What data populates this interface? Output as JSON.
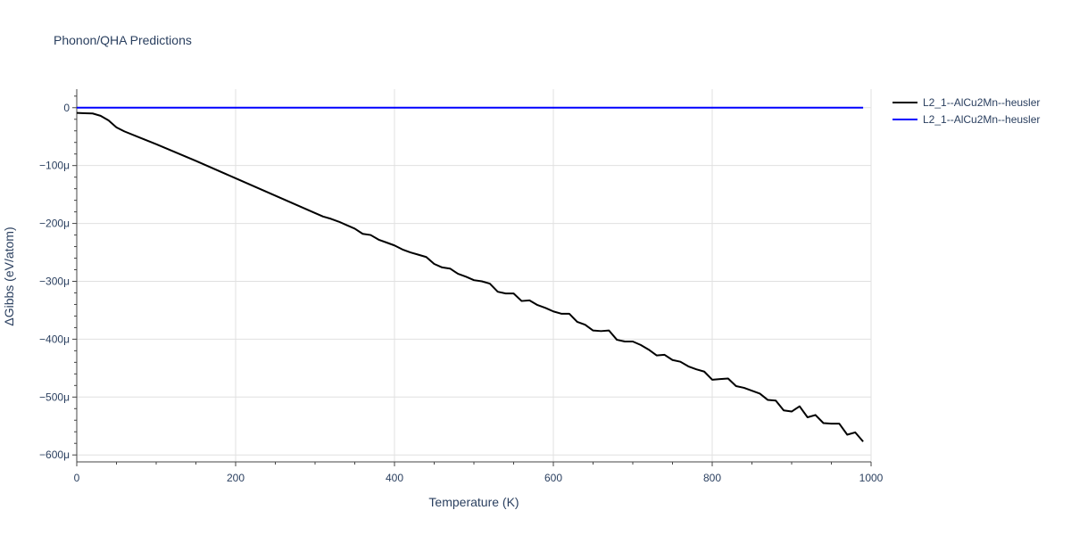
{
  "chart_data": {
    "type": "line",
    "title": "Phonon/QHA Predictions",
    "xlabel": "Temperature (K)",
    "ylabel": "ΔGibbs (eV/atom)",
    "xlim": [
      0,
      1000
    ],
    "ylim": [
      -0.000612,
      3.2e-05
    ],
    "x_ticks": [
      {
        "value": 0,
        "label": "0"
      },
      {
        "value": 200,
        "label": "200"
      },
      {
        "value": 400,
        "label": "400"
      },
      {
        "value": 600,
        "label": "600"
      },
      {
        "value": 800,
        "label": "800"
      },
      {
        "value": 1000,
        "label": "1000"
      }
    ],
    "y_ticks": [
      {
        "value": 0,
        "label": "0"
      },
      {
        "value": -0.0001,
        "label": "−100μ"
      },
      {
        "value": -0.0002,
        "label": "−200μ"
      },
      {
        "value": -0.0003,
        "label": "−300μ"
      },
      {
        "value": -0.0004,
        "label": "−400μ"
      },
      {
        "value": -0.0005,
        "label": "−500μ"
      },
      {
        "value": -0.0006,
        "label": "−600μ"
      }
    ],
    "grid": true,
    "legend_position": "top-right",
    "series": [
      {
        "name": "L2_1--AlCu2Mn--heusler",
        "color": "#000000",
        "x": [
          0,
          10,
          20,
          30,
          40,
          50,
          60,
          80,
          100,
          150,
          200,
          250,
          300,
          310,
          320,
          330,
          340,
          350,
          360,
          370,
          380,
          390,
          400,
          410,
          420,
          430,
          440,
          450,
          460,
          470,
          480,
          490,
          500,
          510,
          520,
          530,
          540,
          550,
          560,
          570,
          580,
          590,
          600,
          610,
          620,
          630,
          640,
          650,
          660,
          670,
          680,
          690,
          700,
          710,
          720,
          730,
          740,
          750,
          760,
          770,
          780,
          790,
          800,
          810,
          820,
          830,
          840,
          850,
          860,
          870,
          880,
          890,
          900,
          910,
          920,
          930,
          940,
          950,
          960,
          970,
          980,
          990
        ],
        "y": [
          -9e-06,
          -9.5e-06,
          -1e-05,
          -1.4e-05,
          -2.2e-05,
          -3.4e-05,
          -4.1e-05,
          -5.2e-05,
          -6.3e-05,
          -9.2e-05,
          -0.000122,
          -0.000152,
          -0.000182,
          -0.000188,
          -0.000192,
          -0.000197,
          -0.000203,
          -0.000209,
          -0.000218,
          -0.00022,
          -0.000228,
          -0.000233,
          -0.000238,
          -0.000245,
          -0.00025,
          -0.000254,
          -0.000258,
          -0.00027,
          -0.000276,
          -0.000278,
          -0.000287,
          -0.000292,
          -0.000298,
          -0.0003,
          -0.000304,
          -0.000318,
          -0.000321,
          -0.000321,
          -0.000334,
          -0.000333,
          -0.000341,
          -0.000346,
          -0.000352,
          -0.000356,
          -0.000356,
          -0.00037,
          -0.000375,
          -0.000385,
          -0.000386,
          -0.000385,
          -0.000401,
          -0.000404,
          -0.000404,
          -0.00041,
          -0.000418,
          -0.000428,
          -0.000427,
          -0.000436,
          -0.000439,
          -0.000447,
          -0.000452,
          -0.000456,
          -0.00047,
          -0.000469,
          -0.000468,
          -0.000481,
          -0.000484,
          -0.000489,
          -0.000494,
          -0.000505,
          -0.000506,
          -0.000523,
          -0.000525,
          -0.000516,
          -0.000535,
          -0.000531,
          -0.000545,
          -0.000546,
          -0.000546,
          -0.000565,
          -0.000561,
          -0.000577
        ]
      },
      {
        "name": "L2_1--AlCu2Mn--heusler",
        "color": "#0000ff",
        "x": [
          0,
          990
        ],
        "y": [
          0,
          0
        ]
      }
    ]
  }
}
